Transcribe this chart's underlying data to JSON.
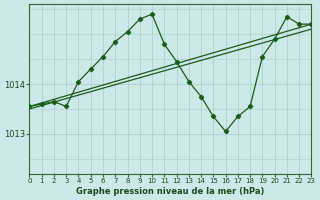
{
  "bg_color": "#cce8e8",
  "grid_color": "#aacccc",
  "line_color": "#1a5c1a",
  "title": "Graphe pression niveau de la mer (hPa)",
  "xlim": [
    0,
    23
  ],
  "ylim": [
    1012.2,
    1015.6
  ],
  "yticks": [
    1013,
    1014
  ],
  "xticks": [
    0,
    1,
    2,
    3,
    4,
    5,
    6,
    7,
    8,
    9,
    10,
    11,
    12,
    13,
    14,
    15,
    16,
    17,
    18,
    19,
    20,
    21,
    22,
    23
  ],
  "trend1_x": [
    0,
    23
  ],
  "trend1_y": [
    1013.55,
    1015.2
  ],
  "trend2_x": [
    0,
    23
  ],
  "trend2_y": [
    1013.5,
    1015.1
  ],
  "main_x": [
    0,
    1,
    2,
    3,
    4,
    5,
    6,
    7,
    8,
    9,
    10,
    11,
    12,
    13,
    14,
    15,
    16,
    17,
    18,
    19,
    20,
    21,
    22,
    23
  ],
  "main_y": [
    1013.55,
    1013.6,
    1013.65,
    1013.55,
    1014.05,
    1014.3,
    1014.55,
    1014.85,
    1015.05,
    1015.3,
    1015.4,
    1014.8,
    1014.45,
    1014.05,
    1013.75,
    1013.35,
    1013.05,
    1013.35,
    1013.55,
    1014.55,
    1014.9,
    1015.35,
    1015.2,
    1015.2
  ]
}
